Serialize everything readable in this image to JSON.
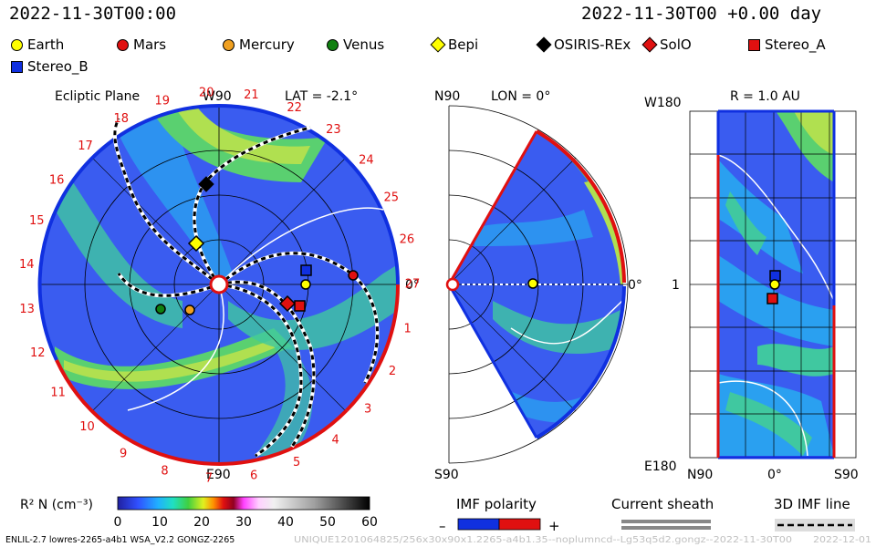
{
  "header": {
    "timestamp_left": "2022-11-30T00:00",
    "timestamp_right": "2022-11-30T00 +0.00 day"
  },
  "legend": [
    {
      "label": "Earth",
      "color": "#ffff00",
      "shape": "circle"
    },
    {
      "label": "Mars",
      "color": "#e01010",
      "shape": "circle"
    },
    {
      "label": "Mercury",
      "color": "#f0a020",
      "shape": "circle"
    },
    {
      "label": "Venus",
      "color": "#108010",
      "shape": "circle"
    },
    {
      "label": "Bepi",
      "color": "#ffff00",
      "shape": "diamond"
    },
    {
      "label": "OSIRIS-REx",
      "color": "#000000",
      "shape": "diamond"
    },
    {
      "label": "SolO",
      "color": "#e01010",
      "shape": "diamond"
    },
    {
      "label": "Stereo_A",
      "color": "#e01010",
      "shape": "square"
    },
    {
      "label": "Stereo_B",
      "color": "#1030e0",
      "shape": "square"
    }
  ],
  "ecliptic": {
    "title": "Ecliptic Plane",
    "w90": "W90",
    "lat": "LAT = -2.1°",
    "e90": "E90",
    "zero": "0°",
    "carrington": [
      "1",
      "2",
      "3",
      "4",
      "5",
      "6",
      "7",
      "8",
      "9",
      "10",
      "11",
      "12",
      "13",
      "14",
      "15",
      "16",
      "17",
      "18",
      "19",
      "20",
      "21",
      "22",
      "23",
      "24",
      "25",
      "26",
      "27"
    ]
  },
  "meridional": {
    "n90": "N90",
    "lon": "LON = 0°",
    "s90": "S90",
    "zero": "0°"
  },
  "radial": {
    "w180": "W180",
    "r": "R = 1.0 AU",
    "e180": "E180",
    "one": "1",
    "n90": "N90",
    "zero": "0°",
    "s90": "S90"
  },
  "colorbar": {
    "label": "R² N (cm⁻³)",
    "ticks": [
      "0",
      "10",
      "20",
      "30",
      "40",
      "50",
      "60"
    ]
  },
  "keys": {
    "imf_polarity": "IMF polarity",
    "minus": "–",
    "plus": "+",
    "current_sheath": "Current sheath",
    "imf_line": "3D IMF line"
  },
  "footer": {
    "model": "ENLIL-2.7 lowres-2265-a4b1 WSA_V2.2 GONGZ-2265",
    "run": "UNIQUE1201064825/256x30x90x1.2265-a4b1.35--noplumncd--Lg53q5d2.gongz--2022-11-30T00",
    "date": "2022-12-01"
  }
}
